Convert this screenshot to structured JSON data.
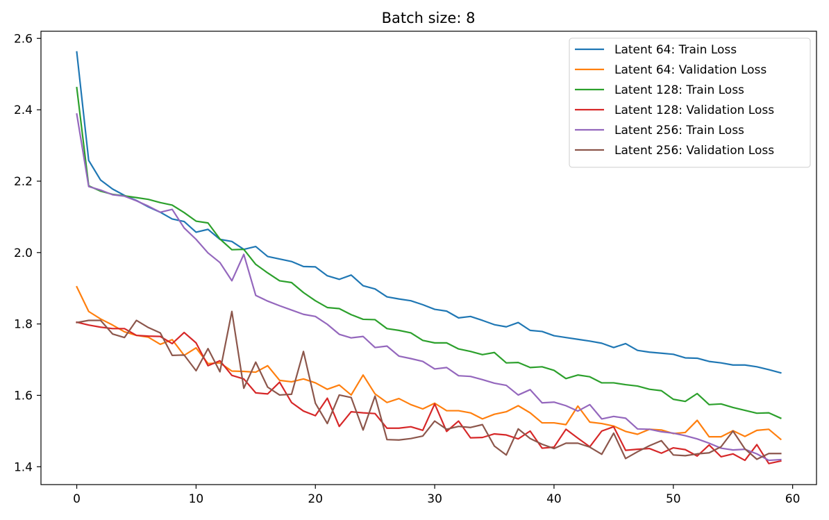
{
  "chart_data": {
    "type": "line",
    "title": "Batch size: 8",
    "xlabel": "",
    "ylabel": "",
    "xlim": [
      -3,
      62
    ],
    "ylim": [
      1.35,
      2.62
    ],
    "xticks": [
      0,
      10,
      20,
      30,
      40,
      50,
      60
    ],
    "yticks": [
      1.4,
      1.6,
      1.8,
      2.0,
      2.2,
      2.4,
      2.6
    ],
    "ytick_labels": [
      "1.4",
      "1.6",
      "1.8",
      "2.0",
      "2.2",
      "2.4",
      "2.6"
    ],
    "grid": false,
    "legend_position": "top-right",
    "x": [
      0,
      1,
      2,
      3,
      4,
      5,
      6,
      7,
      8,
      9,
      10,
      11,
      12,
      13,
      14,
      15,
      16,
      17,
      18,
      19,
      20,
      21,
      22,
      23,
      24,
      25,
      26,
      27,
      28,
      29,
      30,
      31,
      32,
      33,
      34,
      35,
      36,
      37,
      38,
      39,
      40,
      41,
      42,
      43,
      44,
      45,
      46,
      47,
      48,
      49,
      50,
      51,
      52,
      53,
      54,
      55,
      56,
      57,
      58,
      59
    ],
    "series": [
      {
        "name": "Latent 64: Train Loss",
        "color": "#1f77b4",
        "values": [
          2.562,
          2.258,
          2.203,
          2.178,
          2.16,
          2.146,
          2.128,
          2.113,
          2.094,
          2.087,
          2.057,
          2.065,
          2.037,
          2.031,
          2.009,
          2.017,
          1.989,
          1.982,
          1.975,
          1.961,
          1.96,
          1.935,
          1.925,
          1.937,
          1.907,
          1.898,
          1.876,
          1.87,
          1.865,
          1.854,
          1.841,
          1.836,
          1.817,
          1.821,
          1.81,
          1.798,
          1.792,
          1.804,
          1.782,
          1.779,
          1.767,
          1.762,
          1.757,
          1.752,
          1.746,
          1.734,
          1.745,
          1.726,
          1.721,
          1.718,
          1.715,
          1.705,
          1.704,
          1.695,
          1.691,
          1.685,
          1.685,
          1.68,
          1.672,
          1.663
        ]
      },
      {
        "name": "Latent 64: Validation Loss",
        "color": "#ff7f0e",
        "values": [
          1.904,
          1.835,
          1.814,
          1.797,
          1.778,
          1.768,
          1.763,
          1.743,
          1.756,
          1.712,
          1.733,
          1.689,
          1.691,
          1.668,
          1.667,
          1.665,
          1.683,
          1.642,
          1.638,
          1.646,
          1.635,
          1.617,
          1.629,
          1.601,
          1.657,
          1.604,
          1.58,
          1.591,
          1.574,
          1.562,
          1.578,
          1.557,
          1.557,
          1.551,
          1.534,
          1.547,
          1.554,
          1.571,
          1.551,
          1.523,
          1.523,
          1.518,
          1.57,
          1.525,
          1.521,
          1.514,
          1.499,
          1.491,
          1.505,
          1.503,
          1.493,
          1.496,
          1.53,
          1.484,
          1.484,
          1.501,
          1.485,
          1.502,
          1.505,
          1.477
        ]
      },
      {
        "name": "Latent 128: Train Loss",
        "color": "#2ca02c",
        "values": [
          2.462,
          2.187,
          2.172,
          2.163,
          2.159,
          2.154,
          2.149,
          2.14,
          2.133,
          2.112,
          2.088,
          2.083,
          2.038,
          2.008,
          2.009,
          1.967,
          1.943,
          1.921,
          1.916,
          1.888,
          1.865,
          1.846,
          1.843,
          1.826,
          1.813,
          1.812,
          1.787,
          1.782,
          1.775,
          1.754,
          1.747,
          1.747,
          1.73,
          1.723,
          1.714,
          1.72,
          1.691,
          1.692,
          1.678,
          1.68,
          1.67,
          1.647,
          1.657,
          1.652,
          1.635,
          1.635,
          1.63,
          1.626,
          1.617,
          1.613,
          1.589,
          1.583,
          1.605,
          1.574,
          1.576,
          1.566,
          1.558,
          1.55,
          1.551,
          1.536
        ]
      },
      {
        "name": "Latent 128: Validation Loss",
        "color": "#d62728",
        "values": [
          1.805,
          1.797,
          1.791,
          1.787,
          1.787,
          1.768,
          1.766,
          1.765,
          1.745,
          1.776,
          1.747,
          1.683,
          1.697,
          1.656,
          1.646,
          1.607,
          1.604,
          1.637,
          1.58,
          1.556,
          1.543,
          1.592,
          1.513,
          1.554,
          1.551,
          1.549,
          1.508,
          1.508,
          1.512,
          1.502,
          1.576,
          1.499,
          1.528,
          1.481,
          1.482,
          1.492,
          1.489,
          1.478,
          1.5,
          1.452,
          1.455,
          1.505,
          1.48,
          1.456,
          1.5,
          1.512,
          1.446,
          1.449,
          1.451,
          1.438,
          1.453,
          1.448,
          1.43,
          1.461,
          1.428,
          1.436,
          1.418,
          1.462,
          1.409,
          1.416
        ]
      },
      {
        "name": "Latent 256: Train Loss",
        "color": "#9467bd",
        "values": [
          2.388,
          2.185,
          2.175,
          2.162,
          2.158,
          2.145,
          2.13,
          2.113,
          2.121,
          2.069,
          2.037,
          1.999,
          1.972,
          1.921,
          1.995,
          1.88,
          1.864,
          1.851,
          1.839,
          1.827,
          1.821,
          1.799,
          1.771,
          1.761,
          1.765,
          1.734,
          1.738,
          1.71,
          1.703,
          1.695,
          1.674,
          1.678,
          1.655,
          1.653,
          1.644,
          1.634,
          1.628,
          1.601,
          1.616,
          1.579,
          1.581,
          1.571,
          1.556,
          1.574,
          1.534,
          1.541,
          1.536,
          1.506,
          1.505,
          1.498,
          1.494,
          1.487,
          1.478,
          1.466,
          1.452,
          1.447,
          1.449,
          1.436,
          1.418,
          1.42
        ]
      },
      {
        "name": "Latent 256: Validation Loss",
        "color": "#8c564b",
        "values": [
          1.804,
          1.81,
          1.81,
          1.772,
          1.762,
          1.81,
          1.79,
          1.775,
          1.712,
          1.713,
          1.669,
          1.731,
          1.666,
          1.835,
          1.62,
          1.693,
          1.623,
          1.601,
          1.603,
          1.723,
          1.578,
          1.521,
          1.601,
          1.594,
          1.503,
          1.598,
          1.476,
          1.475,
          1.479,
          1.486,
          1.528,
          1.505,
          1.513,
          1.51,
          1.518,
          1.458,
          1.433,
          1.506,
          1.479,
          1.463,
          1.451,
          1.466,
          1.466,
          1.455,
          1.435,
          1.494,
          1.423,
          1.442,
          1.459,
          1.473,
          1.433,
          1.431,
          1.436,
          1.439,
          1.456,
          1.5,
          1.45,
          1.421,
          1.437,
          1.437
        ]
      }
    ]
  }
}
